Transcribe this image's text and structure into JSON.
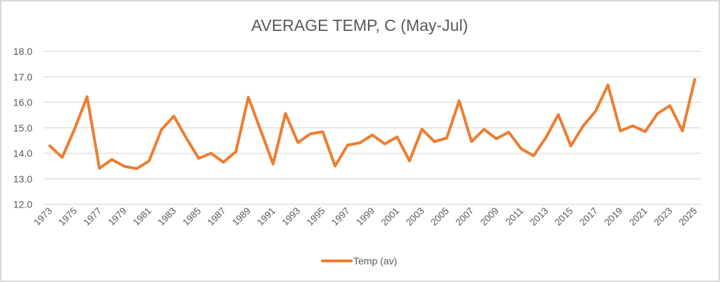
{
  "chart_data": {
    "type": "line",
    "title": "AVERAGE TEMP, C (May-Jul)",
    "xlabel": "",
    "ylabel": "",
    "ylim": [
      12.0,
      18.0
    ],
    "yticks": [
      "12.0",
      "13.0",
      "14.0",
      "15.0",
      "16.0",
      "17.0",
      "18.0"
    ],
    "grid": true,
    "legend_position": "bottom",
    "x": [
      1973,
      1974,
      1975,
      1976,
      1977,
      1978,
      1979,
      1980,
      1981,
      1982,
      1983,
      1984,
      1985,
      1986,
      1987,
      1988,
      1989,
      1990,
      1991,
      1992,
      1993,
      1994,
      1995,
      1996,
      1997,
      1998,
      1999,
      2000,
      2001,
      2002,
      2003,
      2004,
      2005,
      2006,
      2007,
      2008,
      2009,
      2010,
      2011,
      2012,
      2013,
      2014,
      2015,
      2016,
      2017,
      2018,
      2019,
      2020,
      2021,
      2022,
      2023,
      2024,
      2025
    ],
    "xtick_labels": [
      "1973",
      "1975",
      "1977",
      "1979",
      "1981",
      "1983",
      "1985",
      "1987",
      "1989",
      "1991",
      "1993",
      "1995",
      "1997",
      "1999",
      "2001",
      "2003",
      "2005",
      "2007",
      "2009",
      "2011",
      "2013",
      "2015",
      "2017",
      "2019",
      "2021",
      "2023",
      "2025"
    ],
    "series": [
      {
        "name": "Temp (av)",
        "color": "#ED7D31",
        "values": [
          14.29,
          13.84,
          14.96,
          16.22,
          13.41,
          13.76,
          13.49,
          13.4,
          13.7,
          14.93,
          15.46,
          14.6,
          13.8,
          14.0,
          13.65,
          14.07,
          16.2,
          14.9,
          13.58,
          15.56,
          14.42,
          14.76,
          14.85,
          13.5,
          14.32,
          14.41,
          14.72,
          14.37,
          14.64,
          13.7,
          14.95,
          14.46,
          14.6,
          16.06,
          14.46,
          14.94,
          14.57,
          14.83,
          14.18,
          13.9,
          14.62,
          15.52,
          14.29,
          15.08,
          15.65,
          16.68,
          14.88,
          15.08,
          14.85,
          15.56,
          15.87,
          14.88,
          16.9
        ]
      }
    ]
  }
}
